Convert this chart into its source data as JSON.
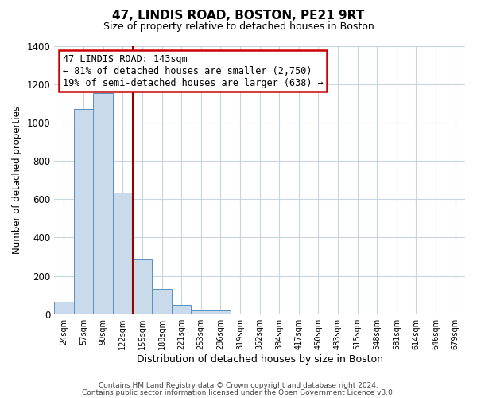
{
  "title": "47, LINDIS ROAD, BOSTON, PE21 9RT",
  "subtitle": "Size of property relative to detached houses in Boston",
  "xlabel": "Distribution of detached houses by size in Boston",
  "ylabel": "Number of detached properties",
  "bar_labels": [
    "24sqm",
    "57sqm",
    "90sqm",
    "122sqm",
    "155sqm",
    "188sqm",
    "221sqm",
    "253sqm",
    "286sqm",
    "319sqm",
    "352sqm",
    "384sqm",
    "417sqm",
    "450sqm",
    "483sqm",
    "515sqm",
    "548sqm",
    "581sqm",
    "614sqm",
    "646sqm",
    "679sqm"
  ],
  "bar_values": [
    65,
    1070,
    1155,
    635,
    285,
    130,
    48,
    20,
    20,
    0,
    0,
    0,
    0,
    0,
    0,
    0,
    0,
    0,
    0,
    0,
    0
  ],
  "bar_color": "#c9daea",
  "bar_edge_color": "#5a8fc0",
  "vline_color": "#990000",
  "annotation_title": "47 LINDIS ROAD: 143sqm",
  "annotation_line1": "← 81% of detached houses are smaller (2,750)",
  "annotation_line2": "19% of semi-detached houses are larger (638) →",
  "annotation_box_color": "#ffffff",
  "annotation_border_color": "#cc0000",
  "ylim": [
    0,
    1400
  ],
  "yticks": [
    0,
    200,
    400,
    600,
    800,
    1000,
    1200,
    1400
  ],
  "footer1": "Contains HM Land Registry data © Crown copyright and database right 2024.",
  "footer2": "Contains public sector information licensed under the Open Government Licence v3.0.",
  "bg_color": "#ffffff",
  "grid_color": "#c8d4e0"
}
